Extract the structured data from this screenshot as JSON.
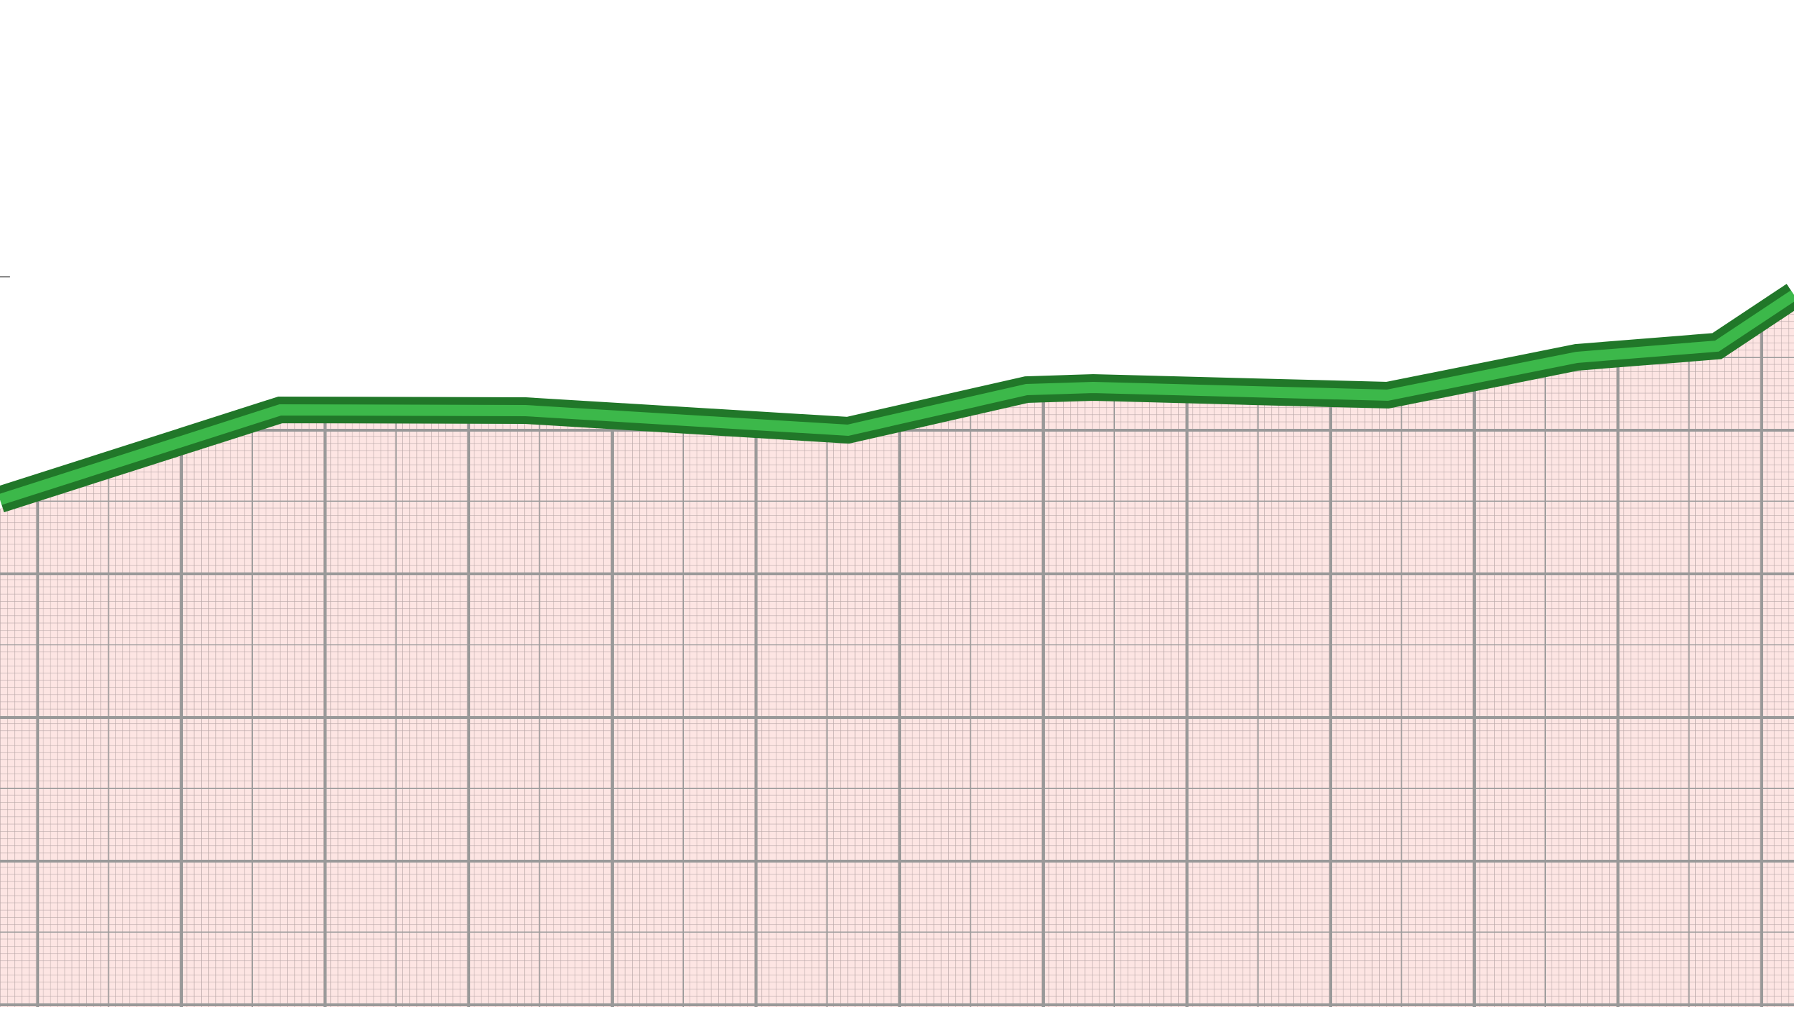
{
  "chart_data": {
    "type": "area",
    "title": "",
    "xlabel": "",
    "ylabel": "",
    "grid": true,
    "x": [
      0,
      400,
      750,
      1210,
      1465,
      1560,
      1980,
      2250,
      2450,
      2560
    ],
    "series": [
      {
        "values": [
          726,
          598,
          599,
          627,
          569,
          566,
          577,
          523,
          507,
          434
        ]
      }
    ]
  },
  "colors": {
    "background": "#ffffff",
    "area_fill": "#fde5e3",
    "grid_fine": "#b8a7a7",
    "grid_medium": "#9b9b9b",
    "grid_major": "#999999",
    "line_outer": "#217729",
    "line_inner": "#3cb84a",
    "axis_tick": "#888888"
  }
}
